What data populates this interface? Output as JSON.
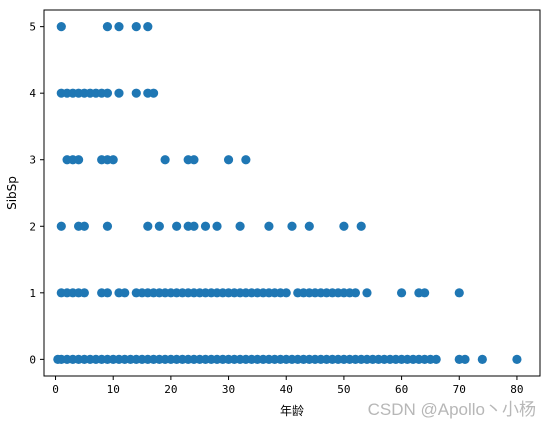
{
  "chart_data": {
    "type": "scatter",
    "title": "",
    "xlabel": "年龄",
    "ylabel": "SibSp",
    "xlim": [
      -2.0,
      84.0
    ],
    "ylim": [
      -0.25,
      5.25
    ],
    "xticks": [
      0,
      10,
      20,
      30,
      40,
      50,
      60,
      70,
      80
    ],
    "yticks": [
      0,
      1,
      2,
      3,
      4,
      5
    ],
    "grid": false,
    "legend": "none",
    "marker_color": "#1f77b4",
    "series": [
      {
        "points": [
          [
            1,
            5
          ],
          [
            9,
            5
          ],
          [
            11,
            5
          ],
          [
            14,
            5
          ],
          [
            16,
            5
          ],
          [
            1,
            4
          ],
          [
            2,
            4
          ],
          [
            3,
            4
          ],
          [
            4,
            4
          ],
          [
            5,
            4
          ],
          [
            6,
            4
          ],
          [
            7,
            4
          ],
          [
            8,
            4
          ],
          [
            9,
            4
          ],
          [
            11,
            4
          ],
          [
            14,
            4
          ],
          [
            16,
            4
          ],
          [
            17,
            4
          ],
          [
            2,
            3
          ],
          [
            3,
            3
          ],
          [
            4,
            3
          ],
          [
            8,
            3
          ],
          [
            9,
            3
          ],
          [
            10,
            3
          ],
          [
            19,
            3
          ],
          [
            23,
            3
          ],
          [
            24,
            3
          ],
          [
            30,
            3
          ],
          [
            33,
            3
          ],
          [
            1,
            2
          ],
          [
            4,
            2
          ],
          [
            5,
            2
          ],
          [
            9,
            2
          ],
          [
            16,
            2
          ],
          [
            18,
            2
          ],
          [
            21,
            2
          ],
          [
            23,
            2
          ],
          [
            24,
            2
          ],
          [
            26,
            2
          ],
          [
            28,
            2
          ],
          [
            32,
            2
          ],
          [
            37,
            2
          ],
          [
            41,
            2
          ],
          [
            44,
            2
          ],
          [
            50,
            2
          ],
          [
            53,
            2
          ],
          [
            1,
            1
          ],
          [
            2,
            1
          ],
          [
            3,
            1
          ],
          [
            4,
            1
          ],
          [
            5,
            1
          ],
          [
            8,
            1
          ],
          [
            9,
            1
          ],
          [
            11,
            1
          ],
          [
            12,
            1
          ],
          [
            14,
            1
          ],
          [
            15,
            1
          ],
          [
            16,
            1
          ],
          [
            17,
            1
          ],
          [
            18,
            1
          ],
          [
            19,
            1
          ],
          [
            20,
            1
          ],
          [
            21,
            1
          ],
          [
            22,
            1
          ],
          [
            23,
            1
          ],
          [
            24,
            1
          ],
          [
            25,
            1
          ],
          [
            26,
            1
          ],
          [
            27,
            1
          ],
          [
            28,
            1
          ],
          [
            29,
            1
          ],
          [
            30,
            1
          ],
          [
            31,
            1
          ],
          [
            32,
            1
          ],
          [
            33,
            1
          ],
          [
            34,
            1
          ],
          [
            35,
            1
          ],
          [
            36,
            1
          ],
          [
            37,
            1
          ],
          [
            38,
            1
          ],
          [
            39,
            1
          ],
          [
            40,
            1
          ],
          [
            42,
            1
          ],
          [
            43,
            1
          ],
          [
            44,
            1
          ],
          [
            45,
            1
          ],
          [
            46,
            1
          ],
          [
            47,
            1
          ],
          [
            48,
            1
          ],
          [
            49,
            1
          ],
          [
            50,
            1
          ],
          [
            51,
            1
          ],
          [
            52,
            1
          ],
          [
            54,
            1
          ],
          [
            60,
            1
          ],
          [
            63,
            1
          ],
          [
            64,
            1
          ],
          [
            70,
            1
          ],
          [
            0.4,
            0
          ],
          [
            1,
            0
          ],
          [
            2,
            0
          ],
          [
            3,
            0
          ],
          [
            4,
            0
          ],
          [
            5,
            0
          ],
          [
            6,
            0
          ],
          [
            7,
            0
          ],
          [
            8,
            0
          ],
          [
            9,
            0
          ],
          [
            10,
            0
          ],
          [
            11,
            0
          ],
          [
            12,
            0
          ],
          [
            13,
            0
          ],
          [
            14,
            0
          ],
          [
            15,
            0
          ],
          [
            16,
            0
          ],
          [
            17,
            0
          ],
          [
            18,
            0
          ],
          [
            19,
            0
          ],
          [
            20,
            0
          ],
          [
            21,
            0
          ],
          [
            22,
            0
          ],
          [
            23,
            0
          ],
          [
            24,
            0
          ],
          [
            25,
            0
          ],
          [
            26,
            0
          ],
          [
            27,
            0
          ],
          [
            28,
            0
          ],
          [
            29,
            0
          ],
          [
            30,
            0
          ],
          [
            31,
            0
          ],
          [
            32,
            0
          ],
          [
            33,
            0
          ],
          [
            34,
            0
          ],
          [
            35,
            0
          ],
          [
            36,
            0
          ],
          [
            37,
            0
          ],
          [
            38,
            0
          ],
          [
            39,
            0
          ],
          [
            40,
            0
          ],
          [
            41,
            0
          ],
          [
            42,
            0
          ],
          [
            43,
            0
          ],
          [
            44,
            0
          ],
          [
            45,
            0
          ],
          [
            46,
            0
          ],
          [
            47,
            0
          ],
          [
            48,
            0
          ],
          [
            49,
            0
          ],
          [
            50,
            0
          ],
          [
            51,
            0
          ],
          [
            52,
            0
          ],
          [
            53,
            0
          ],
          [
            54,
            0
          ],
          [
            55,
            0
          ],
          [
            56,
            0
          ],
          [
            57,
            0
          ],
          [
            58,
            0
          ],
          [
            59,
            0
          ],
          [
            60,
            0
          ],
          [
            61,
            0
          ],
          [
            62,
            0
          ],
          [
            63,
            0
          ],
          [
            64,
            0
          ],
          [
            65,
            0
          ],
          [
            66,
            0
          ],
          [
            70,
            0
          ],
          [
            71,
            0
          ],
          [
            74,
            0
          ],
          [
            80,
            0
          ]
        ]
      }
    ]
  },
  "watermark": "CSDN @Apollo丶小杨"
}
